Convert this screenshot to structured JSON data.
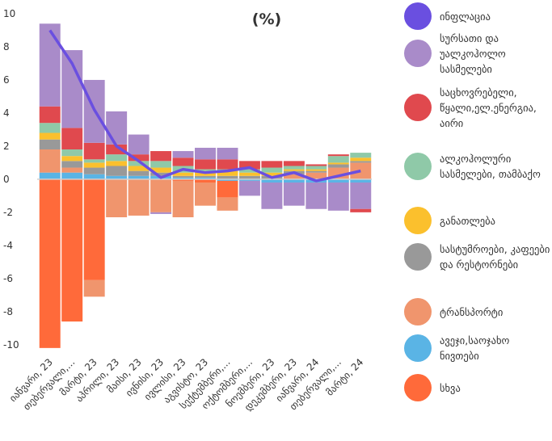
{
  "chart_data": {
    "type": "stacked_bar",
    "title": "(%)",
    "categories": [
      "იანვარი, 23",
      "თებერვალი,...",
      "მარტი, 23",
      "აპრილი, 23",
      "მაისი, 23",
      "ივნისი, 23",
      "ივლისი, 23",
      "აგვისტო, 23",
      "სექტემბერი,...",
      "ოქტომბერი,...",
      "ნოემბერი, 23",
      "დეკემბერი, 23",
      "იანვარი, 24",
      "თებერვალი,...",
      "მარტი, 24"
    ],
    "line": {
      "name": "ინფლაცია",
      "color": "#6a4fe0",
      "values": [
        9.0,
        7.0,
        4.2,
        2.0,
        1.1,
        0.1,
        0.6,
        0.4,
        0.5,
        0.7,
        0.1,
        0.4,
        -0.1,
        0.2,
        0.5
      ]
    },
    "series": [
      {
        "name": "სურსათი და უალკოჰოლო სასმელები",
        "color": "#a98bc9",
        "values": [
          5.0,
          4.7,
          3.8,
          2.0,
          1.2,
          -0.1,
          0.4,
          0.7,
          0.7,
          -0.9,
          -1.6,
          -1.4,
          -1.6,
          -1.7,
          -1.6
        ]
      },
      {
        "name": "საცხოვრებელი, წყალი,ელ.ენერგია, აირი",
        "color": "#e0494e",
        "values": [
          1.0,
          1.3,
          1.0,
          0.6,
          0.4,
          0.6,
          0.5,
          0.6,
          0.6,
          0.5,
          0.4,
          0.3,
          0.1,
          0.1,
          -0.2
        ]
      },
      {
        "name": "ალკოჰოლური სასმელები, თამბაქო",
        "color": "#8fc9a8",
        "values": [
          0.6,
          0.4,
          0.2,
          0.4,
          0.3,
          0.4,
          0.4,
          0.1,
          0.1,
          0.2,
          0.3,
          0.2,
          0.2,
          0.4,
          0.3
        ]
      },
      {
        "name": "განათლება",
        "color": "#fbc02d",
        "values": [
          0.4,
          0.3,
          0.3,
          0.3,
          0.3,
          0.3,
          0.2,
          0.3,
          0.3,
          0.2,
          0.2,
          0.1,
          0.1,
          0.1,
          0.2
        ]
      },
      {
        "name": "სასტუმროები, კაფეები და რესტორნები",
        "color": "#999999",
        "values": [
          0.6,
          0.4,
          0.4,
          0.6,
          0.3,
          0.2,
          0.1,
          0.1,
          0.2,
          0.2,
          0.2,
          0.2,
          0.1,
          0.2,
          0.1
        ]
      },
      {
        "name": "ტრანსპორტი",
        "color": "#f0956d",
        "values": [
          1.4,
          0.3,
          -1.0,
          -2.3,
          -2.2,
          -2.0,
          -2.2,
          -1.4,
          -0.8,
          0.0,
          0.0,
          0.3,
          0.4,
          0.7,
          1.0
        ]
      },
      {
        "name": "ავეჯი,საოჯახო ნივთები",
        "color": "#5ab4e5",
        "values": [
          0.4,
          0.4,
          0.3,
          0.2,
          0.2,
          0.2,
          0.1,
          0.1,
          -0.1,
          -0.1,
          -0.2,
          -0.2,
          -0.2,
          -0.2,
          -0.2
        ]
      },
      {
        "name": "სხვა",
        "color": "#ff6a3a",
        "values": [
          -10.2,
          -8.6,
          -6.1,
          0.0,
          0.0,
          0.0,
          -0.1,
          -0.2,
          -1.0,
          0.0,
          0.0,
          0.0,
          0.0,
          0.0,
          0.0
        ]
      }
    ],
    "ylim": [
      -10.5,
      10
    ],
    "yticks": [
      -10,
      -8,
      -6,
      -4,
      -2,
      0,
      2,
      4,
      6,
      8,
      10
    ]
  }
}
